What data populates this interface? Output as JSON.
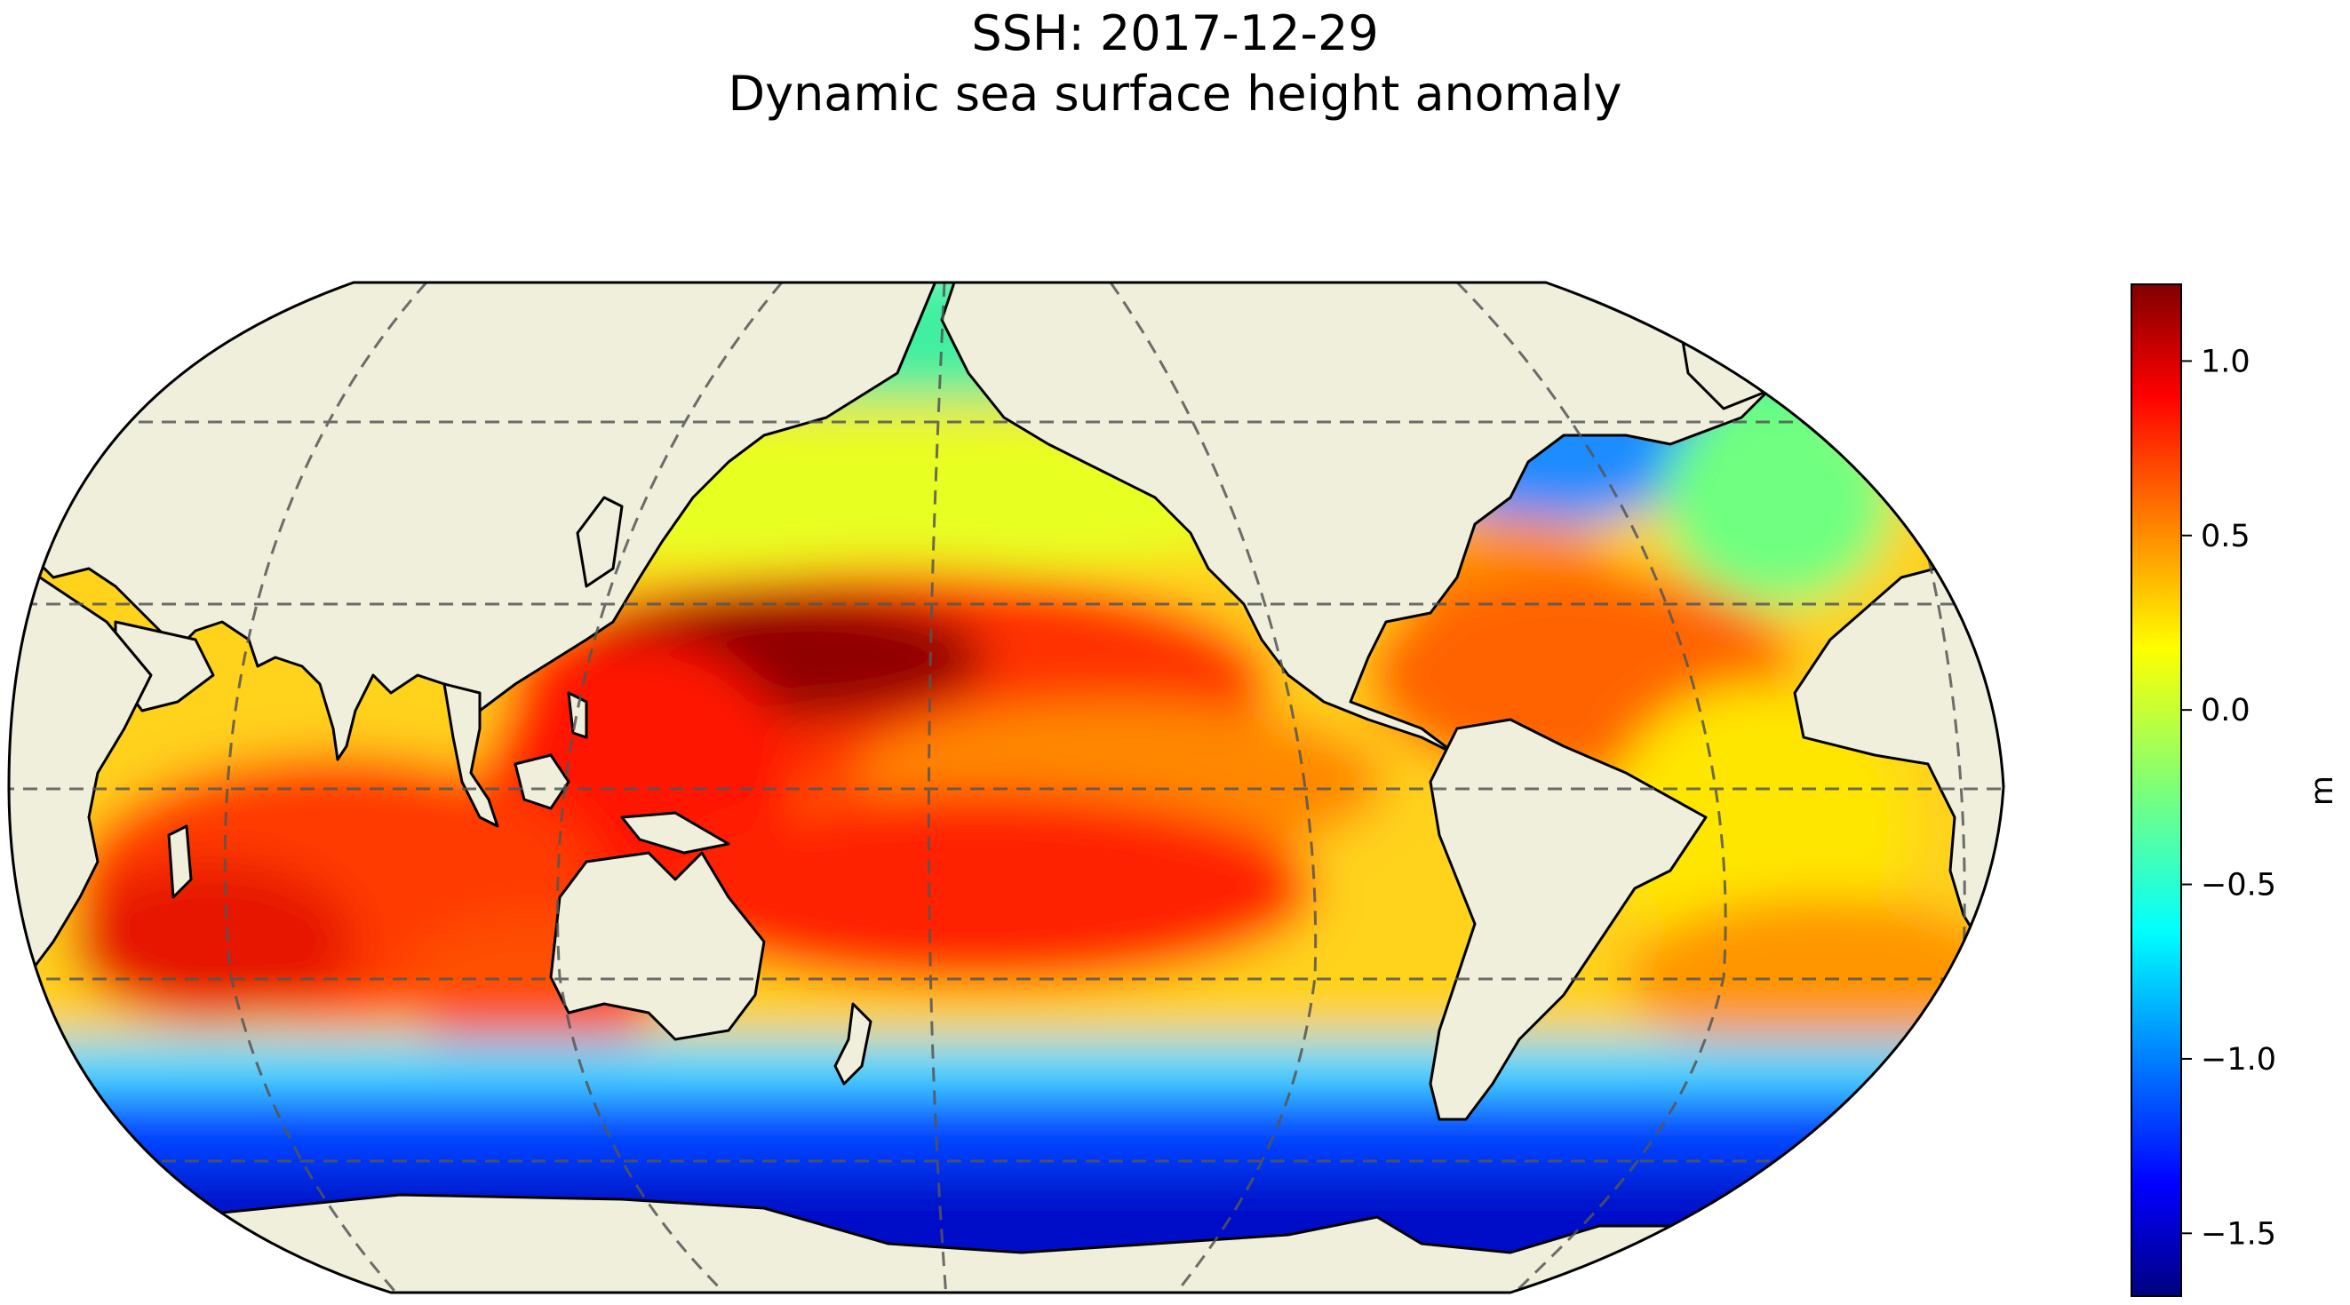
{
  "title": {
    "line1": "SSH: 2017-12-29",
    "line2": "Dynamic sea surface height anomaly"
  },
  "colorbar": {
    "label": "m",
    "colormap": "jet",
    "range": [
      -1.68,
      1.22
    ],
    "ticks": [
      {
        "value": 1.0,
        "label": "1.0"
      },
      {
        "value": 0.5,
        "label": "0.5"
      },
      {
        "value": 0.0,
        "label": "0.0"
      },
      {
        "value": -0.5,
        "label": "−0.5"
      },
      {
        "value": -1.0,
        "label": "−1.0"
      },
      {
        "value": -1.5,
        "label": "−1.5"
      }
    ]
  },
  "map": {
    "projection": "Robinson",
    "central_longitude": 180,
    "land_color": "#efefdb",
    "coastline_color": "#000000",
    "gridlines": "dashed"
  }
}
